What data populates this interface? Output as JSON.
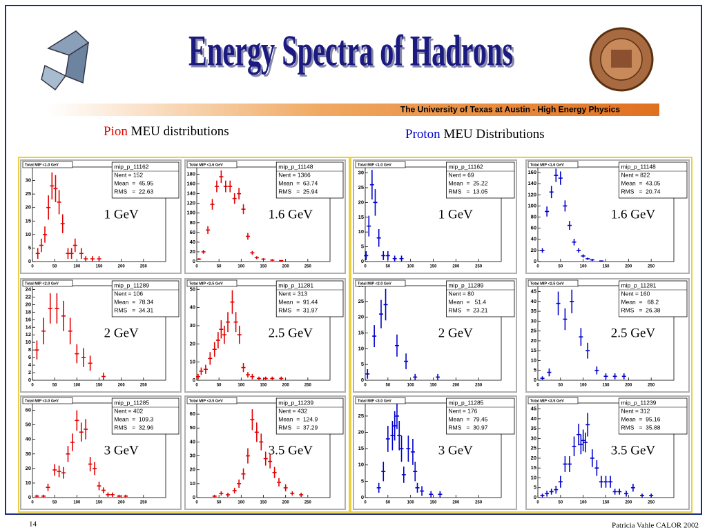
{
  "header": {
    "title": "Energy Spectra of Hadrons",
    "subtitle": "The University of Texas at Austin  -  High Energy Physics"
  },
  "sections": [
    {
      "name": "Pion",
      "label": " MEU distributions",
      "color": "#e00000"
    },
    {
      "name": "Proton",
      "label": " MEU Distributions",
      "color": "#0000cc"
    }
  ],
  "chart_data": [
    {
      "type": "errorbar",
      "title": "Total MIP <1.0 GeV",
      "energy_label": "1 GeV",
      "stats": [
        "mip_p_11162",
        "Nent = 152",
        "Mean  =  45.95",
        "RMS   =  22.63"
      ],
      "color": "#e00000",
      "x": [
        12,
        20,
        28,
        36,
        44,
        52,
        60,
        68,
        80,
        88,
        96,
        110,
        120,
        135,
        150
      ],
      "values": [
        3,
        6,
        10,
        20,
        28,
        27,
        22,
        14,
        3,
        3,
        6,
        3,
        1,
        1,
        1
      ],
      "errors": [
        2,
        2.5,
        3,
        4.5,
        5,
        5,
        4.5,
        3.5,
        2,
        2,
        2.5,
        2,
        1,
        1,
        1
      ],
      "xlim": [
        0,
        300
      ],
      "xticks": [
        0,
        50,
        100,
        150,
        200,
        250
      ],
      "ylim": [
        0,
        35
      ],
      "yticks": [
        0,
        5,
        10,
        15,
        20,
        25,
        30
      ]
    },
    {
      "type": "errorbar",
      "title": "Total MIP <1.6 GeV",
      "energy_label": "1.6 GeV",
      "stats": [
        "mip_p_11148",
        "Nent = 1366",
        "Mean  =  63.74",
        "RMS   =  25.94"
      ],
      "color": "#e00000",
      "x": [
        5,
        15,
        25,
        35,
        45,
        55,
        65,
        75,
        85,
        95,
        105,
        115,
        125,
        135,
        150,
        170,
        190
      ],
      "values": [
        5,
        20,
        65,
        118,
        155,
        175,
        155,
        155,
        130,
        140,
        108,
        52,
        18,
        8,
        5,
        3,
        2
      ],
      "errors": [
        2,
        4,
        8,
        11,
        12,
        13,
        12,
        12,
        11,
        12,
        10,
        7,
        4,
        3,
        2,
        2,
        1
      ],
      "xlim": [
        0,
        300
      ],
      "xticks": [
        0,
        50,
        100,
        150,
        200,
        250
      ],
      "ylim": [
        0,
        195
      ],
      "yticks": [
        0,
        20,
        40,
        60,
        80,
        100,
        120,
        140,
        160,
        180
      ]
    },
    {
      "type": "errorbar",
      "title": "Total MIP <2.0 GeV",
      "energy_label": "2 GeV",
      "stats": [
        "mip_p_11289",
        "Nent = 106",
        "Mean  =  78.34",
        "RMS   =  34.31"
      ],
      "color": "#e00000",
      "x": [
        10,
        25,
        40,
        55,
        70,
        85,
        100,
        115,
        130,
        160
      ],
      "values": [
        8,
        13,
        19,
        19,
        17,
        13,
        7,
        6,
        4.5,
        1
      ],
      "errors": [
        2.5,
        3.5,
        4,
        4,
        4,
        3.5,
        2.5,
        2.5,
        2,
        1
      ],
      "xlim": [
        0,
        300
      ],
      "xticks": [
        0,
        50,
        100,
        150,
        200,
        250
      ],
      "ylim": [
        0,
        25
      ],
      "yticks": [
        0,
        2,
        4,
        6,
        8,
        10,
        12,
        14,
        16,
        18,
        20,
        22,
        24
      ]
    },
    {
      "type": "errorbar",
      "title": "Total MIP <2.5 GeV",
      "energy_label": "2.5 GeV",
      "stats": [
        "mip_p_11281",
        "Nent = 313",
        "Mean  =  91.44",
        "RMS   =  31.97"
      ],
      "color": "#e00000",
      "x": [
        3,
        10,
        20,
        30,
        40,
        48,
        55,
        62,
        70,
        80,
        88,
        96,
        105,
        115,
        125,
        140,
        155,
        170,
        190
      ],
      "values": [
        2,
        5,
        6,
        12,
        17,
        22,
        28,
        25,
        32,
        43,
        32,
        25,
        7,
        3,
        2,
        1,
        1,
        1,
        1
      ],
      "errors": [
        1.5,
        2,
        2.5,
        3.5,
        4,
        4.5,
        5,
        5,
        5.5,
        6.5,
        5.5,
        5,
        2.5,
        1.5,
        1.5,
        1,
        1,
        1,
        1
      ],
      "xlim": [
        0,
        300
      ],
      "xticks": [
        0,
        50,
        100,
        150,
        200,
        250
      ],
      "ylim": [
        0,
        52
      ],
      "yticks": [
        0,
        10,
        20,
        30,
        40,
        50
      ]
    },
    {
      "type": "errorbar",
      "title": "Total MIP <3.0 GeV",
      "energy_label": "3 GeV",
      "stats": [
        "mip_p_11285",
        "Nent = 402",
        "Mean  =  109.3",
        "RMS   =  32.96"
      ],
      "color": "#e00000",
      "x": [
        10,
        25,
        35,
        50,
        60,
        70,
        80,
        90,
        100,
        110,
        120,
        130,
        140,
        150,
        160,
        170,
        180,
        195,
        210
      ],
      "values": [
        1,
        1,
        7,
        19,
        18,
        17,
        30,
        38,
        53,
        45,
        47,
        23,
        20,
        8,
        5,
        2,
        2,
        1,
        1
      ],
      "errors": [
        1,
        1,
        2.5,
        4,
        4,
        4,
        5.5,
        6,
        7,
        6.5,
        7,
        5,
        4.5,
        3,
        2,
        1.5,
        1.5,
        1,
        1
      ],
      "xlim": [
        0,
        300
      ],
      "xticks": [
        0,
        50,
        100,
        150,
        200,
        250
      ],
      "ylim": [
        0,
        65
      ],
      "yticks": [
        0,
        10,
        20,
        30,
        40,
        50,
        60
      ]
    },
    {
      "type": "errorbar",
      "title": "Total MIP <3.5 GeV",
      "energy_label": "3.5 GeV",
      "stats": [
        "mip_p_11239",
        "Nent = 432",
        "Mean  =  124.9",
        "RMS   =  37.29"
      ],
      "color": "#e00000",
      "x": [
        40,
        55,
        70,
        85,
        95,
        105,
        115,
        125,
        135,
        145,
        155,
        165,
        175,
        185,
        200,
        215,
        235
      ],
      "values": [
        1,
        3,
        2,
        5,
        10,
        17,
        30,
        56,
        47,
        40,
        28,
        26,
        18,
        11,
        7,
        3,
        2
      ],
      "errors": [
        1,
        1.5,
        1.5,
        2,
        3,
        4,
        5.5,
        7.5,
        7,
        6,
        5,
        5,
        4,
        3,
        2.5,
        1.5,
        1.5
      ],
      "xlim": [
        0,
        300
      ],
      "xticks": [
        0,
        50,
        100,
        150,
        200,
        250
      ],
      "ylim": [
        0,
        68
      ],
      "yticks": [
        0,
        10,
        20,
        30,
        40,
        50,
        60
      ]
    },
    {
      "type": "errorbar",
      "title": "Total MIP <1.0 GeV",
      "energy_label": "1 GeV",
      "stats": [
        "mip_p_11162",
        "Nent = 69",
        "Mean  =  25.22",
        "RMS   =  13.05"
      ],
      "color": "#0000cc",
      "x": [
        2,
        8,
        15,
        22,
        30,
        40,
        50,
        65,
        80
      ],
      "values": [
        2,
        12,
        26,
        20,
        8,
        2,
        2,
        1,
        1
      ],
      "errors": [
        1.5,
        3.5,
        5,
        4.5,
        3,
        1.5,
        1.5,
        1,
        1
      ],
      "xlim": [
        0,
        300
      ],
      "xticks": [
        0,
        50,
        100,
        150,
        200,
        250
      ],
      "ylim": [
        0,
        32
      ],
      "yticks": [
        0,
        5,
        10,
        15,
        20,
        25,
        30
      ]
    },
    {
      "type": "errorbar",
      "title": "Total MIP <1.6 GeV",
      "energy_label": "1.6 GeV",
      "stats": [
        "mip_p_11148",
        "Nent = 822",
        "Mean  =  43.05",
        "RMS   =  20.74"
      ],
      "color": "#0000cc",
      "x": [
        10,
        20,
        30,
        40,
        50,
        60,
        70,
        80,
        90,
        100,
        110,
        120,
        140
      ],
      "values": [
        20,
        90,
        125,
        155,
        150,
        100,
        65,
        35,
        20,
        10,
        5,
        3,
        1
      ],
      "errors": [
        4,
        9,
        11,
        12,
        12,
        10,
        8,
        6,
        4,
        3,
        2,
        2,
        1
      ],
      "xlim": [
        0,
        300
      ],
      "xticks": [
        0,
        50,
        100,
        150,
        200,
        250
      ],
      "ylim": [
        0,
        170
      ],
      "yticks": [
        0,
        20,
        40,
        60,
        80,
        100,
        120,
        140,
        160
      ]
    },
    {
      "type": "errorbar",
      "title": "Total MIP <2.0 GeV",
      "energy_label": "2 GeV",
      "stats": [
        "mip_p_11289",
        "Nent = 80",
        "Mean  =   51.4",
        "RMS   =  23.21"
      ],
      "color": "#0000cc",
      "x": [
        5,
        20,
        35,
        45,
        70,
        90,
        110,
        160
      ],
      "values": [
        2,
        14,
        21,
        24,
        11,
        6,
        1,
        1
      ],
      "errors": [
        1.5,
        3.5,
        4.5,
        5,
        3.5,
        2.5,
        1,
        1
      ],
      "xlim": [
        0,
        300
      ],
      "xticks": [
        0,
        50,
        100,
        150,
        200,
        250
      ],
      "ylim": [
        0,
        30
      ],
      "yticks": [
        0,
        5,
        10,
        15,
        20,
        25,
        30
      ]
    },
    {
      "type": "errorbar",
      "title": "Total MIP <2.5 GeV",
      "energy_label": "2.5 GeV",
      "stats": [
        "mip_p_11281",
        "Nent = 160",
        "Mean  =   68.2",
        "RMS   =  26.38"
      ],
      "color": "#0000cc",
      "x": [
        10,
        25,
        45,
        60,
        75,
        95,
        110,
        130,
        150,
        170,
        190
      ],
      "values": [
        1,
        4,
        39,
        31,
        40,
        22,
        15,
        5,
        2,
        2,
        2
      ],
      "errors": [
        1,
        2,
        6,
        5.5,
        6,
        4.5,
        4,
        2,
        1.5,
        1.5,
        1.5
      ],
      "xlim": [
        0,
        300
      ],
      "xticks": [
        0,
        50,
        100,
        150,
        200,
        250
      ],
      "ylim": [
        0,
        48
      ],
      "yticks": [
        0,
        5,
        10,
        15,
        20,
        25,
        30,
        35,
        40,
        45
      ]
    },
    {
      "type": "errorbar",
      "title": "Total MIP <3.0 GeV",
      "energy_label": "3 GeV",
      "stats": [
        "mip_p_11285",
        "Nent = 176",
        "Mean  =  79.45",
        "RMS   =  30.97"
      ],
      "color": "#0000cc",
      "x": [
        30,
        40,
        50,
        60,
        65,
        70,
        75,
        80,
        85,
        95,
        105,
        110,
        115,
        125,
        145,
        165
      ],
      "values": [
        3,
        8,
        18,
        19,
        22,
        25,
        19,
        15,
        7,
        15,
        14,
        8,
        3,
        2,
        1,
        1
      ],
      "errors": [
        1.5,
        3,
        4,
        4.5,
        4.5,
        4,
        4.5,
        4,
        2.5,
        4,
        4,
        3,
        1.5,
        1.5,
        1,
        1
      ],
      "xlim": [
        0,
        300
      ],
      "xticks": [
        0,
        50,
        100,
        150,
        200,
        250
      ],
      "ylim": [
        0,
        29
      ],
      "yticks": [
        0,
        5,
        10,
        15,
        20,
        25
      ]
    },
    {
      "type": "errorbar",
      "title": "Total MIP <3.5 GeV",
      "energy_label": "3.5 GeV",
      "stats": [
        "mip_p_11239",
        "Nent = 312",
        "Mean  =  95.16",
        "RMS   =  35.88"
      ],
      "color": "#0000cc",
      "x": [
        10,
        20,
        30,
        40,
        50,
        60,
        70,
        80,
        90,
        95,
        100,
        105,
        110,
        120,
        130,
        140,
        150,
        160,
        170,
        180,
        195,
        210,
        230,
        250
      ],
      "values": [
        1,
        2,
        3,
        4,
        8,
        17,
        17,
        26,
        32,
        27,
        29,
        28,
        37,
        20,
        15,
        8,
        8,
        8,
        3,
        3,
        2,
        5,
        1,
        1
      ],
      "errors": [
        1,
        1.5,
        1.5,
        2,
        3,
        4,
        4,
        5,
        5.5,
        5,
        5.5,
        5,
        6,
        4.5,
        4,
        3,
        3,
        3,
        1.5,
        1.5,
        1.5,
        2,
        1,
        1
      ],
      "xlim": [
        0,
        300
      ],
      "xticks": [
        0,
        50,
        100,
        150,
        200,
        250
      ],
      "ylim": [
        0,
        48
      ],
      "yticks": [
        0,
        5,
        10,
        15,
        20,
        25,
        30,
        35,
        40,
        45
      ]
    }
  ],
  "footer": {
    "page": "14",
    "author": "Patricia Vahle CALOR 2002"
  }
}
